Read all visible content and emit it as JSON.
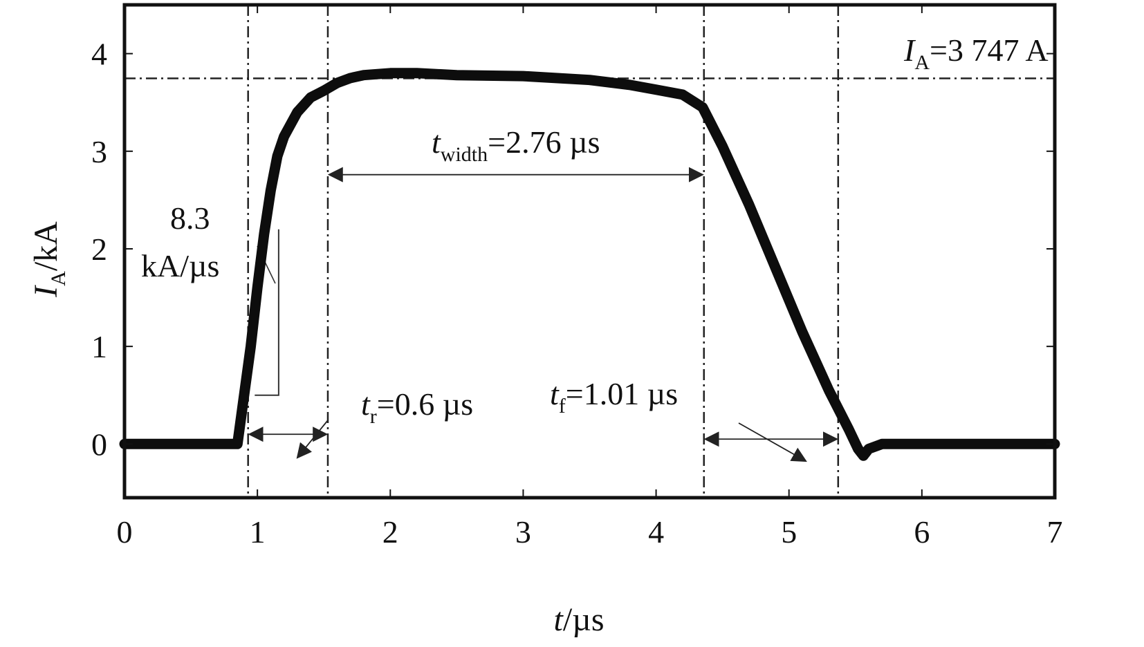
{
  "chart_data": {
    "type": "line",
    "title": "",
    "xlabel": {
      "var": "t",
      "unit": "/µs"
    },
    "ylabel": {
      "var": "I",
      "sub": "A",
      "unit": "/kA"
    },
    "xlim": [
      0,
      7
    ],
    "ylim": [
      -0.55,
      4.5
    ],
    "xticks": [
      "0",
      "1",
      "2",
      "3",
      "4",
      "5",
      "6",
      "7"
    ],
    "yticks": [
      "0",
      "1",
      "2",
      "3",
      "4"
    ],
    "grid": false,
    "series": [
      {
        "x": [
          0,
          0.5,
          0.85,
          0.9,
          0.95,
          1.0,
          1.05,
          1.1,
          1.15,
          1.2,
          1.3,
          1.4,
          1.5,
          1.6,
          1.7,
          1.8,
          2.0,
          2.2,
          2.5,
          3.0,
          3.5,
          3.8,
          4.0,
          4.2,
          4.35,
          4.5,
          4.7,
          4.9,
          5.1,
          5.3,
          5.45,
          5.52,
          5.56,
          5.6,
          5.7,
          6.0,
          6.5,
          7.0
        ],
        "y": [
          0,
          0,
          0,
          0.5,
          1.0,
          1.6,
          2.15,
          2.6,
          2.95,
          3.15,
          3.4,
          3.55,
          3.62,
          3.7,
          3.75,
          3.78,
          3.8,
          3.8,
          3.78,
          3.77,
          3.73,
          3.68,
          3.63,
          3.58,
          3.45,
          3.05,
          2.45,
          1.8,
          1.15,
          0.55,
          0.15,
          -0.05,
          -0.12,
          -0.05,
          0,
          0,
          0,
          0
        ]
      }
    ],
    "reference_lines": {
      "vertical_x": [
        0.93,
        1.53,
        4.36,
        5.37
      ],
      "horizontal_y": [
        3.747
      ]
    },
    "annotations": {
      "peak": {
        "var": "I",
        "sub": "A",
        "value": "=3 747 A"
      },
      "width": {
        "var": "t",
        "sub": "width",
        "value": "=2.76 µs"
      },
      "rise": {
        "var": "t",
        "sub": "r",
        "value": "=0.6 µs"
      },
      "fall": {
        "var": "t",
        "sub": "f",
        "value": "=1.01 µs"
      },
      "slope_value": "8.3",
      "slope_unit": "kA/µs"
    }
  }
}
